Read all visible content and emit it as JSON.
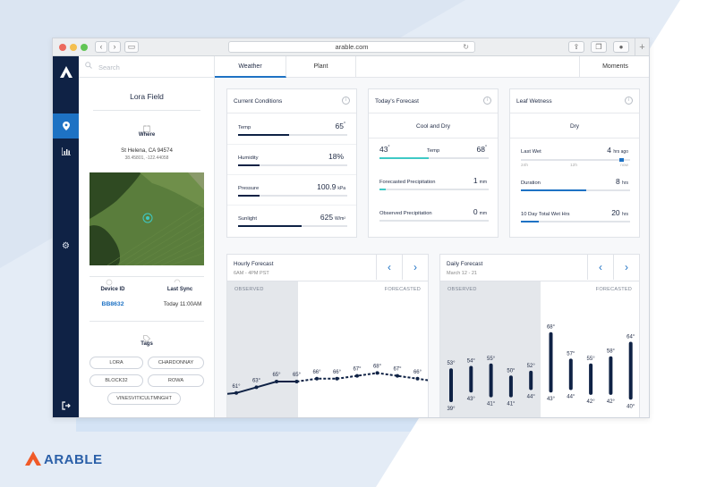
{
  "browser": {
    "url": "arable.com"
  },
  "sidebar": {
    "nav": [
      "logo",
      "location-pin",
      "chart",
      "settings",
      "logout"
    ]
  },
  "left_panel": {
    "search_placeholder": "Search",
    "field_name": "Lora Field",
    "where_label": "Where",
    "location": "St Helena, CA 94574",
    "coords": "38.45801, -122.44058",
    "device_id_label": "Device ID",
    "device_id": "BB8632",
    "last_sync_label": "Last Sync",
    "last_sync": "Today 11:00AM",
    "tags_label": "Tags",
    "tags": [
      "LORA",
      "CHARDONNAY",
      "BLOCK32",
      "ROWA",
      "VINESVITICULTMNGHT"
    ]
  },
  "tabs": {
    "weather": "Weather",
    "plant": "Plant",
    "moments": "Moments"
  },
  "current_conditions": {
    "title": "Current Conditions",
    "rows": [
      {
        "label": "Temp",
        "value": "65",
        "unit": "°",
        "fill": 0.47
      },
      {
        "label": "Humidity",
        "value": "18%",
        "unit": "",
        "fill": 0.2
      },
      {
        "label": "Pressure",
        "value": "100.9",
        "unit": "kPa",
        "fill": 0.2
      },
      {
        "label": "Sunlight",
        "value": "625",
        "unit": "W/m²",
        "fill": 0.58
      }
    ]
  },
  "todays_forecast": {
    "title": "Today's Forecast",
    "summary": "Cool and Dry",
    "temp_low": "43",
    "temp_high": "68",
    "deg": "°",
    "temp_label": "Temp",
    "rows": [
      {
        "label": "Forecasted Precipitation",
        "value": "1",
        "unit": "mm",
        "fill": 0.06
      },
      {
        "label": "Observed Precipitation",
        "value": "0",
        "unit": "mm",
        "fill": 0.0
      }
    ]
  },
  "leaf_wetness": {
    "title": "Leaf Wetness",
    "summary": "Dry",
    "last_wet_label": "Last Wet",
    "last_wet_value": "4",
    "last_wet_unit": "hrs ago",
    "ticks": [
      "24h",
      "12h",
      "now"
    ],
    "duration_label": "Duration",
    "duration_value": "8",
    "duration_unit": "hrs",
    "duration_fill": 0.6,
    "ten_day_label": "10 Day Total Wet Hrs",
    "ten_day_value": "20",
    "ten_day_unit": "hrs",
    "ten_day_fill": 0.16
  },
  "hourly": {
    "title": "Hourly Forecast",
    "subtitle": "6AM - 4PM PST",
    "observed": "OBSERVED",
    "forecasted": "FORECASTED",
    "temps": [
      "61",
      "63",
      "65",
      "65",
      "66",
      "66",
      "67",
      "68",
      "67",
      "66"
    ],
    "deg": "°"
  },
  "daily": {
    "title": "Daily Forecast",
    "subtitle": "March 12 - 21",
    "observed": "OBSERVED",
    "forecasted": "FORECASTED",
    "highs": [
      "53",
      "54",
      "55",
      "50",
      "52",
      "68",
      "57",
      "55",
      "58",
      "64"
    ],
    "lows": [
      "39",
      "43",
      "41",
      "41",
      "44",
      "43",
      "44",
      "42",
      "42",
      "40"
    ],
    "deg": "°"
  },
  "brand": {
    "name": "ARABLE",
    "color": "#2a5fa8",
    "accent": "#f05a28"
  },
  "colors": {
    "navy": "#0f2245",
    "blue": "#1e72c4",
    "teal": "#3ec9c5"
  }
}
